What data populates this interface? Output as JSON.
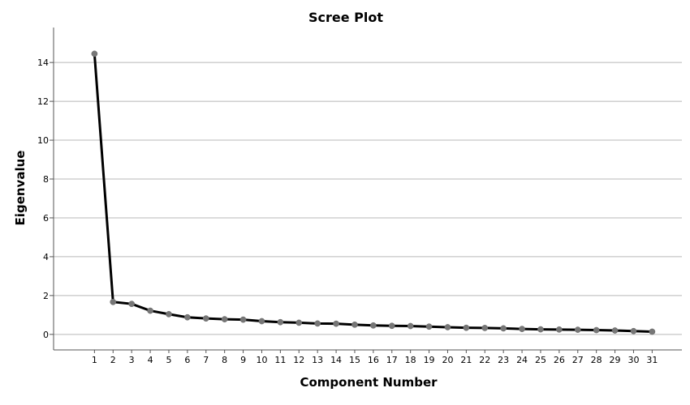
{
  "chart_data": {
    "type": "line",
    "title": "Scree Plot",
    "xlabel": "Component Number",
    "ylabel": "Eigenvalue",
    "x": [
      1,
      2,
      3,
      4,
      5,
      6,
      7,
      8,
      9,
      10,
      11,
      12,
      13,
      14,
      15,
      16,
      17,
      18,
      19,
      20,
      21,
      22,
      23,
      24,
      25,
      26,
      27,
      28,
      29,
      30,
      31
    ],
    "values": [
      14.45,
      1.67,
      1.57,
      1.22,
      1.04,
      0.88,
      0.82,
      0.78,
      0.76,
      0.68,
      0.63,
      0.6,
      0.56,
      0.55,
      0.5,
      0.46,
      0.44,
      0.43,
      0.4,
      0.37,
      0.34,
      0.33,
      0.31,
      0.28,
      0.26,
      0.25,
      0.24,
      0.22,
      0.2,
      0.17,
      0.14
    ],
    "yticks": [
      0,
      2,
      4,
      6,
      8,
      10,
      12,
      14
    ],
    "ylim": [
      -0.8,
      15.8
    ],
    "xlim": [
      -1.2,
      32.6
    ],
    "grid": true,
    "line_color": "#000000",
    "marker_color": "#777777"
  }
}
